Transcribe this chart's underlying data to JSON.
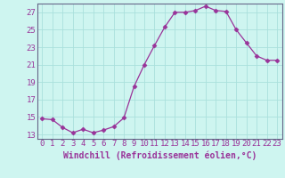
{
  "x": [
    0,
    1,
    2,
    3,
    4,
    5,
    6,
    7,
    8,
    9,
    10,
    11,
    12,
    13,
    14,
    15,
    16,
    17,
    18,
    19,
    20,
    21,
    22,
    23
  ],
  "y": [
    14.8,
    14.7,
    13.8,
    13.2,
    13.6,
    13.2,
    13.5,
    13.9,
    14.9,
    18.5,
    21.0,
    23.2,
    25.3,
    27.0,
    27.0,
    27.2,
    27.7,
    27.2,
    27.1,
    25.0,
    23.5,
    22.0,
    21.5,
    21.5
  ],
  "line_color": "#993399",
  "marker": "D",
  "marker_size": 2.5,
  "xlabel": "Windchill (Refroidissement éolien,°C)",
  "ylim": [
    12.5,
    28.0
  ],
  "xlim": [
    -0.5,
    23.5
  ],
  "yticks": [
    13,
    15,
    17,
    19,
    21,
    23,
    25,
    27
  ],
  "xticks": [
    0,
    1,
    2,
    3,
    4,
    5,
    6,
    7,
    8,
    9,
    10,
    11,
    12,
    13,
    14,
    15,
    16,
    17,
    18,
    19,
    20,
    21,
    22,
    23
  ],
  "bg_color": "#cef5f0",
  "grid_color": "#aae0dc",
  "label_color": "#993399",
  "tick_font_size": 6.5,
  "xlabel_font_size": 7.0
}
